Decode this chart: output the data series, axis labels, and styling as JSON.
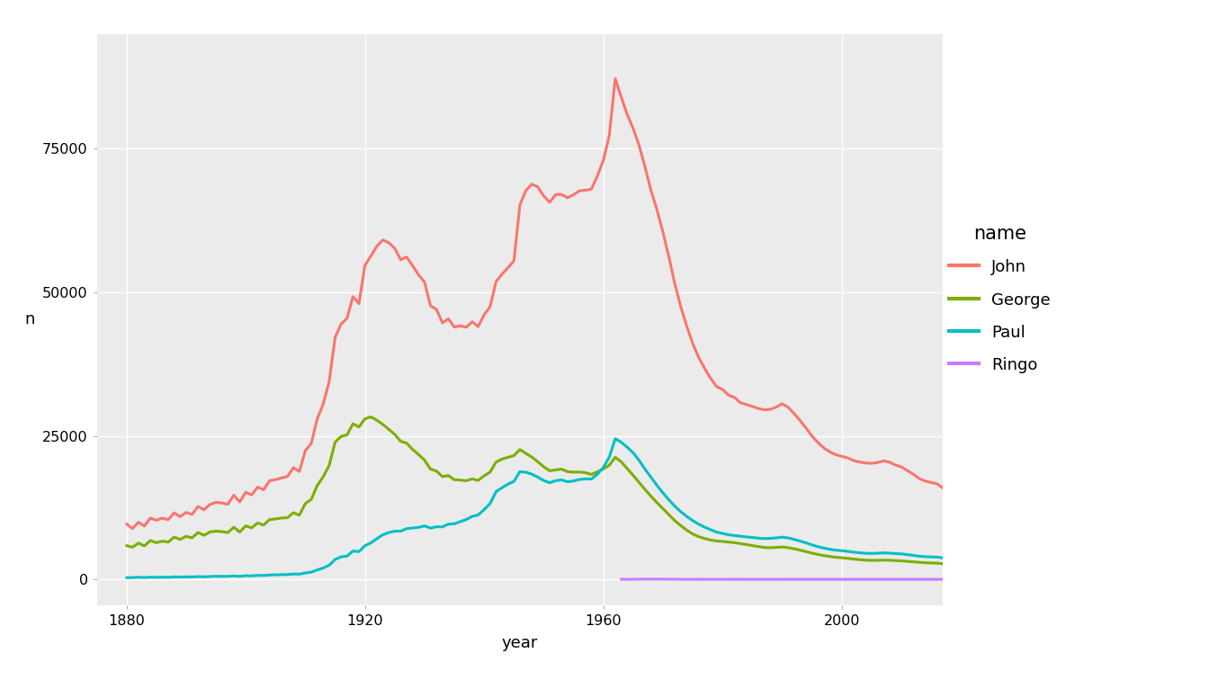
{
  "background_color": "#EBEBEB",
  "plot_bg": "#EBEBEB",
  "outer_bg": "#FFFFFF",
  "grid_color": "#FFFFFF",
  "xlabel": "year",
  "ylabel": "n",
  "xlim": [
    1875,
    2017
  ],
  "ylim": [
    -4500,
    95000
  ],
  "yticks": [
    0,
    25000,
    50000,
    75000
  ],
  "xticks": [
    1880,
    1920,
    1960,
    2000
  ],
  "ytick_labels": [
    "0",
    "25000",
    "50000",
    "75000"
  ],
  "legend_title": "name",
  "names": [
    "John",
    "George",
    "Paul",
    "Ringo"
  ],
  "colors": {
    "John": "#F8766D",
    "George": "#7CAE00",
    "Paul": "#00BFC4",
    "Ringo": "#C77CFF"
  },
  "line_width": 2.2,
  "john": {
    "years": [
      1880,
      1881,
      1882,
      1883,
      1884,
      1885,
      1886,
      1887,
      1888,
      1889,
      1890,
      1891,
      1892,
      1893,
      1894,
      1895,
      1896,
      1897,
      1898,
      1899,
      1900,
      1901,
      1902,
      1903,
      1904,
      1905,
      1906,
      1907,
      1908,
      1909,
      1910,
      1911,
      1912,
      1913,
      1914,
      1915,
      1916,
      1917,
      1918,
      1919,
      1920,
      1921,
      1922,
      1923,
      1924,
      1925,
      1926,
      1927,
      1928,
      1929,
      1930,
      1931,
      1932,
      1933,
      1934,
      1935,
      1936,
      1937,
      1938,
      1939,
      1940,
      1941,
      1942,
      1943,
      1944,
      1945,
      1946,
      1947,
      1948,
      1949,
      1950,
      1951,
      1952,
      1953,
      1954,
      1955,
      1956,
      1957,
      1958,
      1959,
      1960,
      1961,
      1962,
      1963,
      1964,
      1965,
      1966,
      1967,
      1968,
      1969,
      1970,
      1971,
      1972,
      1973,
      1974,
      1975,
      1976,
      1977,
      1978,
      1979,
      1980,
      1981,
      1982,
      1983,
      1984,
      1985,
      1986,
      1987,
      1988,
      1989,
      1990,
      1991,
      1992,
      1993,
      1994,
      1995,
      1996,
      1997,
      1998,
      1999,
      2000,
      2001,
      2002,
      2003,
      2004,
      2005,
      2006,
      2007,
      2008,
      2009,
      2010,
      2011,
      2012,
      2013,
      2014,
      2015,
      2016,
      2017
    ],
    "n": [
      9655,
      8852,
      9947,
      9283,
      10679,
      10301,
      10655,
      10399,
      11588,
      10932,
      11654,
      11315,
      12699,
      12135,
      13035,
      13418,
      13316,
      13090,
      14660,
      13499,
      15179,
      14699,
      16078,
      15614,
      17183,
      17370,
      17671,
      17917,
      19479,
      18785,
      22417,
      23673,
      27979,
      30516,
      34445,
      42117,
      44466,
      45490,
      49247,
      48030,
      54698,
      56338,
      58017,
      59128,
      58651,
      57682,
      55683,
      56152,
      54640,
      53046,
      51789,
      47668,
      47037,
      44699,
      45386,
      43956,
      44168,
      43913,
      44875,
      44037,
      46095,
      47477,
      51856,
      53165,
      54272,
      55468,
      65218,
      67727,
      68832,
      68384,
      66790,
      65697,
      67021,
      67048,
      66484,
      67008,
      67682,
      67785,
      67972,
      70265,
      72977,
      77296,
      87218,
      84051,
      81001,
      78553,
      75612,
      71842,
      67752,
      64386,
      60485,
      56200,
      51462,
      47506,
      44087,
      41095,
      38654,
      36762,
      35012,
      33592,
      33092,
      32090,
      31694,
      30779,
      30453,
      30131,
      29762,
      29545,
      29616,
      29989,
      30590,
      29985,
      28898,
      27694,
      26375,
      24990,
      23840,
      22897,
      22213,
      21723,
      21443,
      21152,
      20706,
      20449,
      20282,
      20211,
      20345,
      20635,
      20421,
      19926,
      19600,
      18962,
      18321,
      17567,
      17128,
      16887,
      16640,
      15882
    ]
  },
  "george": {
    "years": [
      1880,
      1881,
      1882,
      1883,
      1884,
      1885,
      1886,
      1887,
      1888,
      1889,
      1890,
      1891,
      1892,
      1893,
      1894,
      1895,
      1896,
      1897,
      1898,
      1899,
      1900,
      1901,
      1902,
      1903,
      1904,
      1905,
      1906,
      1907,
      1908,
      1909,
      1910,
      1911,
      1912,
      1913,
      1914,
      1915,
      1916,
      1917,
      1918,
      1919,
      1920,
      1921,
      1922,
      1923,
      1924,
      1925,
      1926,
      1927,
      1928,
      1929,
      1930,
      1931,
      1932,
      1933,
      1934,
      1935,
      1936,
      1937,
      1938,
      1939,
      1940,
      1941,
      1942,
      1943,
      1944,
      1945,
      1946,
      1947,
      1948,
      1949,
      1950,
      1951,
      1952,
      1953,
      1954,
      1955,
      1956,
      1957,
      1958,
      1959,
      1960,
      1961,
      1962,
      1963,
      1964,
      1965,
      1966,
      1967,
      1968,
      1969,
      1970,
      1971,
      1972,
      1973,
      1974,
      1975,
      1976,
      1977,
      1978,
      1979,
      1980,
      1981,
      1982,
      1983,
      1984,
      1985,
      1986,
      1987,
      1988,
      1989,
      1990,
      1991,
      1992,
      1993,
      1994,
      1995,
      1996,
      1997,
      1998,
      1999,
      2000,
      2001,
      2002,
      2003,
      2004,
      2005,
      2006,
      2007,
      2008,
      2009,
      2010,
      2011,
      2012,
      2013,
      2014,
      2015,
      2016,
      2017
    ],
    "n": [
      5885,
      5607,
      6325,
      5830,
      6760,
      6387,
      6646,
      6503,
      7361,
      6952,
      7493,
      7234,
      8153,
      7672,
      8261,
      8412,
      8311,
      8152,
      9093,
      8243,
      9308,
      8977,
      9821,
      9459,
      10405,
      10526,
      10688,
      10740,
      11616,
      11183,
      13214,
      13940,
      16354,
      17883,
      19820,
      23903,
      24892,
      25175,
      27099,
      26540,
      27955,
      28299,
      27721,
      26990,
      26143,
      25265,
      24047,
      23735,
      22634,
      21748,
      20776,
      19207,
      18869,
      17910,
      18077,
      17365,
      17294,
      17177,
      17503,
      17231,
      18046,
      18670,
      20436,
      20950,
      21256,
      21560,
      22609,
      21930,
      21312,
      20491,
      19605,
      18916,
      19069,
      19202,
      18757,
      18683,
      18688,
      18582,
      18281,
      18730,
      19226,
      19872,
      21256,
      20482,
      19319,
      18125,
      16890,
      15664,
      14488,
      13371,
      12325,
      11293,
      10218,
      9367,
      8571,
      7908,
      7444,
      7116,
      6858,
      6689,
      6604,
      6491,
      6400,
      6224,
      6066,
      5879,
      5712,
      5562,
      5503,
      5568,
      5637,
      5527,
      5324,
      5097,
      4839,
      4574,
      4344,
      4148,
      3979,
      3849,
      3772,
      3664,
      3534,
      3432,
      3353,
      3303,
      3315,
      3357,
      3329,
      3267,
      3224,
      3140,
      3057,
      2960,
      2893,
      2851,
      2826,
      2716
    ]
  },
  "paul": {
    "years": [
      1880,
      1881,
      1882,
      1883,
      1884,
      1885,
      1886,
      1887,
      1888,
      1889,
      1890,
      1891,
      1892,
      1893,
      1894,
      1895,
      1896,
      1897,
      1898,
      1899,
      1900,
      1901,
      1902,
      1903,
      1904,
      1905,
      1906,
      1907,
      1908,
      1909,
      1910,
      1911,
      1912,
      1913,
      1914,
      1915,
      1916,
      1917,
      1918,
      1919,
      1920,
      1921,
      1922,
      1923,
      1924,
      1925,
      1926,
      1927,
      1928,
      1929,
      1930,
      1931,
      1932,
      1933,
      1934,
      1935,
      1936,
      1937,
      1938,
      1939,
      1940,
      1941,
      1942,
      1943,
      1944,
      1945,
      1946,
      1947,
      1948,
      1949,
      1950,
      1951,
      1952,
      1953,
      1954,
      1955,
      1956,
      1957,
      1958,
      1959,
      1960,
      1961,
      1962,
      1963,
      1964,
      1965,
      1966,
      1967,
      1968,
      1969,
      1970,
      1971,
      1972,
      1973,
      1974,
      1975,
      1976,
      1977,
      1978,
      1979,
      1980,
      1981,
      1982,
      1983,
      1984,
      1985,
      1986,
      1987,
      1988,
      1989,
      1990,
      1991,
      1992,
      1993,
      1994,
      1995,
      1996,
      1997,
      1998,
      1999,
      2000,
      2001,
      2002,
      2003,
      2004,
      2005,
      2006,
      2007,
      2008,
      2009,
      2010,
      2011,
      2012,
      2013,
      2014,
      2015,
      2016,
      2017
    ],
    "n": [
      305,
      305,
      369,
      312,
      378,
      346,
      380,
      353,
      427,
      396,
      441,
      418,
      487,
      443,
      497,
      533,
      520,
      519,
      591,
      527,
      642,
      607,
      694,
      672,
      762,
      789,
      803,
      840,
      930,
      912,
      1117,
      1256,
      1648,
      1977,
      2464,
      3461,
      3916,
      4055,
      4937,
      4828,
      5857,
      6354,
      7081,
      7766,
      8159,
      8399,
      8396,
      8831,
      8951,
      9060,
      9319,
      8915,
      9165,
      9147,
      9628,
      9680,
      10052,
      10429,
      10966,
      11221,
      12146,
      13195,
      15278,
      15965,
      16595,
      17064,
      18744,
      18666,
      18325,
      17815,
      17217,
      16843,
      17186,
      17323,
      17003,
      17143,
      17397,
      17500,
      17480,
      18303,
      19490,
      21285,
      24498,
      23892,
      23020,
      22058,
      20736,
      19199,
      17788,
      16370,
      15072,
      13858,
      12742,
      11780,
      10964,
      10232,
      9628,
      9108,
      8651,
      8238,
      8002,
      7768,
      7641,
      7498,
      7392,
      7298,
      7177,
      7109,
      7140,
      7226,
      7359,
      7219,
      6968,
      6679,
      6363,
      6013,
      5697,
      5445,
      5240,
      5087,
      4995,
      4882,
      4738,
      4631,
      4550,
      4513,
      4550,
      4605,
      4574,
      4489,
      4440,
      4314,
      4183,
      4036,
      3957,
      3909,
      3884,
      3731
    ]
  },
  "ringo": {
    "years": [
      1963,
      1964,
      1965,
      1966,
      1967,
      1968,
      1969,
      1970,
      1971,
      1972,
      1973,
      1974,
      1975,
      1976,
      1977,
      1978,
      1979,
      1980,
      1981,
      1982,
      1983,
      1984,
      1985,
      1986,
      1987,
      1988,
      1989,
      1990,
      1991,
      1992,
      1993,
      1994,
      1995,
      1996,
      1997,
      1998,
      1999,
      2000,
      2001,
      2002,
      2003,
      2004,
      2005,
      2006,
      2007,
      2008,
      2009,
      2010,
      2011,
      2012,
      2013,
      2014,
      2015,
      2016,
      2017
    ],
    "n": [
      11,
      14,
      22,
      30,
      45,
      40,
      37,
      43,
      32,
      25,
      18,
      12,
      12,
      10,
      11,
      13,
      11,
      12,
      10,
      8,
      8,
      7,
      7,
      7,
      7,
      7,
      8,
      5,
      5,
      5,
      5,
      5,
      5,
      5,
      5,
      5,
      5,
      5,
      5,
      5,
      5,
      5,
      5,
      5,
      5,
      5,
      5,
      5,
      5,
      5,
      5,
      5,
      5,
      5,
      5
    ]
  }
}
